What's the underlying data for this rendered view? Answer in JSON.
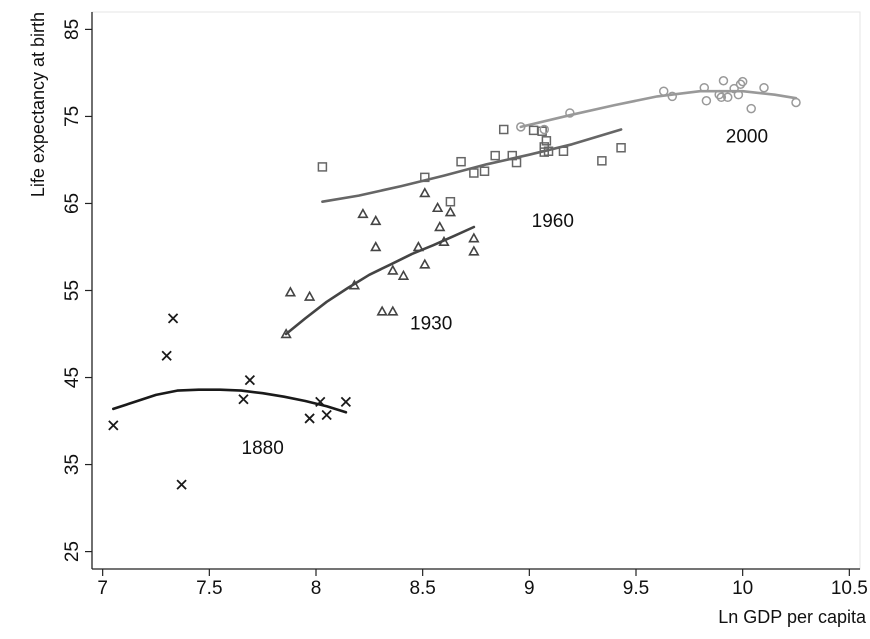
{
  "chart_data": {
    "type": "scatter",
    "xlabel": "Ln GDP per capita",
    "ylabel": "Life expectancy at birth",
    "xlim": [
      6.95,
      10.55
    ],
    "ylim": [
      23,
      87
    ],
    "xticks": [
      "7",
      "7.5",
      "8",
      "8.5",
      "9",
      "9.5",
      "10",
      "10.5"
    ],
    "yticks": [
      "25",
      "35",
      "45",
      "55",
      "65",
      "75",
      "85"
    ],
    "grid": false,
    "series": [
      {
        "label": "1880",
        "marker": "x",
        "color": "#1a1a1a",
        "label_pos": [
          7.75,
          36.2
        ],
        "points": [
          [
            7.05,
            39.5
          ],
          [
            7.3,
            47.5
          ],
          [
            7.33,
            51.8
          ],
          [
            7.37,
            32.7
          ],
          [
            7.66,
            42.5
          ],
          [
            7.69,
            44.7
          ],
          [
            7.97,
            40.3
          ],
          [
            8.02,
            42.2
          ],
          [
            8.05,
            40.7
          ],
          [
            8.14,
            42.2
          ]
        ],
        "fit": [
          [
            7.05,
            41.4
          ],
          [
            7.15,
            42.2
          ],
          [
            7.25,
            43.0
          ],
          [
            7.35,
            43.5
          ],
          [
            7.45,
            43.6
          ],
          [
            7.55,
            43.6
          ],
          [
            7.65,
            43.5
          ],
          [
            7.75,
            43.2
          ],
          [
            7.85,
            42.8
          ],
          [
            7.95,
            42.3
          ],
          [
            8.05,
            41.7
          ],
          [
            8.14,
            41.0
          ]
        ]
      },
      {
        "label": "1930",
        "marker": "triangle",
        "color": "#444444",
        "label_pos": [
          8.54,
          50.5
        ],
        "points": [
          [
            7.86,
            50.0
          ],
          [
            7.88,
            54.8
          ],
          [
            7.97,
            54.3
          ],
          [
            8.18,
            55.6
          ],
          [
            8.22,
            63.8
          ],
          [
            8.28,
            63.0
          ],
          [
            8.28,
            60.0
          ],
          [
            8.31,
            52.6
          ],
          [
            8.36,
            52.6
          ],
          [
            8.36,
            57.3
          ],
          [
            8.41,
            56.7
          ],
          [
            8.48,
            60.0
          ],
          [
            8.51,
            66.2
          ],
          [
            8.51,
            58.0
          ],
          [
            8.57,
            64.5
          ],
          [
            8.58,
            62.3
          ],
          [
            8.6,
            60.6
          ],
          [
            8.63,
            64.0
          ],
          [
            8.74,
            61.0
          ],
          [
            8.74,
            59.5
          ]
        ],
        "fit": [
          [
            7.86,
            50.0
          ],
          [
            7.95,
            51.8
          ],
          [
            8.05,
            53.7
          ],
          [
            8.15,
            55.3
          ],
          [
            8.25,
            56.8
          ],
          [
            8.35,
            58.0
          ],
          [
            8.45,
            59.2
          ],
          [
            8.55,
            60.2
          ],
          [
            8.65,
            61.3
          ],
          [
            8.74,
            62.3
          ]
        ]
      },
      {
        "label": "1960",
        "marker": "square",
        "color": "#666666",
        "label_pos": [
          9.11,
          62.3
        ],
        "points": [
          [
            8.03,
            69.2
          ],
          [
            8.51,
            68.0
          ],
          [
            8.63,
            65.2
          ],
          [
            8.68,
            69.8
          ],
          [
            8.74,
            68.5
          ],
          [
            8.79,
            68.7
          ],
          [
            8.84,
            70.5
          ],
          [
            8.88,
            73.5
          ],
          [
            8.92,
            70.5
          ],
          [
            8.94,
            69.7
          ],
          [
            9.02,
            73.4
          ],
          [
            9.06,
            73.3
          ],
          [
            9.07,
            71.5
          ],
          [
            9.07,
            70.9
          ],
          [
            9.08,
            72.2
          ],
          [
            9.09,
            71.0
          ],
          [
            9.16,
            71.0
          ],
          [
            9.34,
            69.9
          ],
          [
            9.43,
            71.4
          ]
        ],
        "fit": [
          [
            8.03,
            65.2
          ],
          [
            8.2,
            65.9
          ],
          [
            8.4,
            67.0
          ],
          [
            8.6,
            68.2
          ],
          [
            8.8,
            69.5
          ],
          [
            9.0,
            70.6
          ],
          [
            9.2,
            71.8
          ],
          [
            9.43,
            73.5
          ]
        ]
      },
      {
        "label": "2000",
        "marker": "circle",
        "color": "#999999",
        "label_pos": [
          10.02,
          72.0
        ],
        "points": [
          [
            8.96,
            73.8
          ],
          [
            9.07,
            73.5
          ],
          [
            9.19,
            75.4
          ],
          [
            9.63,
            77.9
          ],
          [
            9.67,
            77.3
          ],
          [
            9.82,
            78.3
          ],
          [
            9.83,
            76.8
          ],
          [
            9.89,
            77.5
          ],
          [
            9.9,
            77.2
          ],
          [
            9.91,
            79.1
          ],
          [
            9.93,
            77.2
          ],
          [
            9.96,
            78.2
          ],
          [
            9.98,
            77.5
          ],
          [
            9.99,
            78.7
          ],
          [
            10.0,
            79.0
          ],
          [
            10.04,
            75.9
          ],
          [
            10.1,
            78.3
          ],
          [
            10.25,
            76.6
          ]
        ],
        "fit": [
          [
            8.96,
            73.8
          ],
          [
            9.2,
            75.2
          ],
          [
            9.4,
            76.3
          ],
          [
            9.6,
            77.3
          ],
          [
            9.8,
            77.9
          ],
          [
            10.0,
            77.9
          ],
          [
            10.15,
            77.5
          ],
          [
            10.25,
            77.1
          ]
        ]
      }
    ]
  }
}
